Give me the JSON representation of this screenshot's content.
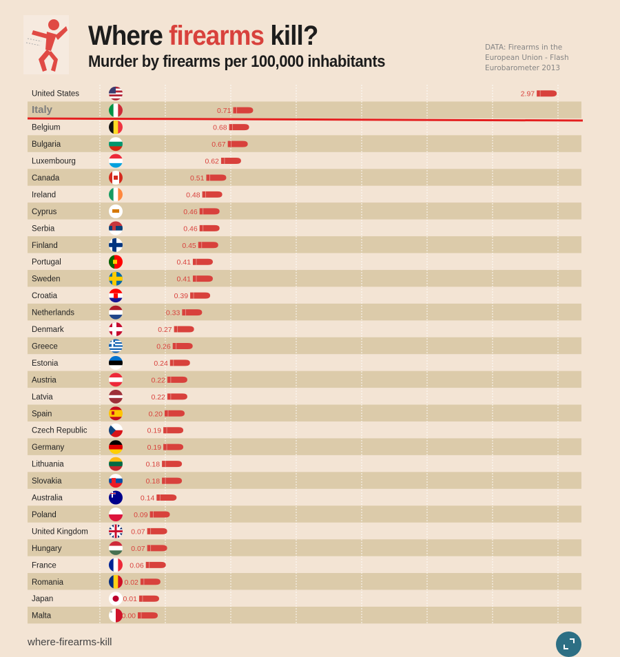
{
  "header": {
    "title_start": "Where ",
    "title_accent": "firearms",
    "title_end": " kill?",
    "subtitle": "Murder by firearms per 100,000 inhabitants",
    "source": "DATA: Firearms in the European Union - Flash Eurobarometer 2013"
  },
  "footer": {
    "name": "where-firearms-kill"
  },
  "colors": {
    "background": "#f3e4d4",
    "band": "#dccbaa",
    "bullet": "#d8413c",
    "highlight_line": "#e41f1f",
    "expand_button": "#2d6f84"
  },
  "logo_icon": "running-figure-shot-icon",
  "expand_icon": "expand-icon",
  "highlighted_country": "Italy",
  "chart_data": {
    "type": "bar",
    "marker": "bullet",
    "orientation": "horizontal",
    "title": "Where firearms kill?",
    "subtitle": "Murder by firearms per 100,000 inhabitants",
    "xlim": [
      -0.5,
      3.3
    ],
    "grid": true,
    "categories": [
      "United States",
      "Italy",
      "Belgium",
      "Bulgaria",
      "Luxembourg",
      "Canada",
      "Ireland",
      "Cyprus",
      "Serbia",
      "Finland",
      "Portugal",
      "Sweden",
      "Croatia",
      "Netherlands",
      "Denmark",
      "Greece",
      "Estonia",
      "Austria",
      "Latvia",
      "Spain",
      "Czech Republic",
      "Germany",
      "Lithuania",
      "Slovakia",
      "Australia",
      "Poland",
      "United Kingdom",
      "Hungary",
      "France",
      "Romania",
      "Japan",
      "Malta"
    ],
    "values": [
      2.97,
      0.71,
      0.68,
      0.67,
      0.62,
      0.51,
      0.48,
      0.46,
      0.46,
      0.45,
      0.41,
      0.41,
      0.39,
      0.33,
      0.27,
      0.26,
      0.24,
      0.22,
      0.22,
      0.2,
      0.19,
      0.19,
      0.18,
      0.18,
      0.14,
      0.09,
      0.07,
      0.07,
      0.06,
      0.02,
      0.01,
      0.0
    ],
    "labels": [
      "2.97",
      "0.71",
      "0.68",
      "0.67",
      "0.62",
      "0.51",
      "0.48",
      "0.46",
      "0.46",
      "0.45",
      "0.41",
      "0.41",
      "0.39",
      "0.33",
      "0.27",
      "0.26",
      "0.24",
      "0.22",
      "0.22",
      "0.20",
      "0.19",
      "0.19",
      "0.18",
      "0.18",
      "0.14",
      "0.09",
      "0.07",
      "0.07",
      "0.06",
      "0.02",
      "0.01",
      "0.00"
    ],
    "flags": [
      "us",
      "it",
      "be",
      "bg",
      "lu",
      "ca",
      "ie",
      "cy",
      "rs",
      "fi",
      "pt",
      "se",
      "hr",
      "nl",
      "dk",
      "gr",
      "ee",
      "at",
      "lv",
      "es",
      "cz",
      "de",
      "lt",
      "sk",
      "au",
      "pl",
      "gb",
      "hu",
      "fr",
      "ro",
      "jp",
      "mt"
    ]
  }
}
